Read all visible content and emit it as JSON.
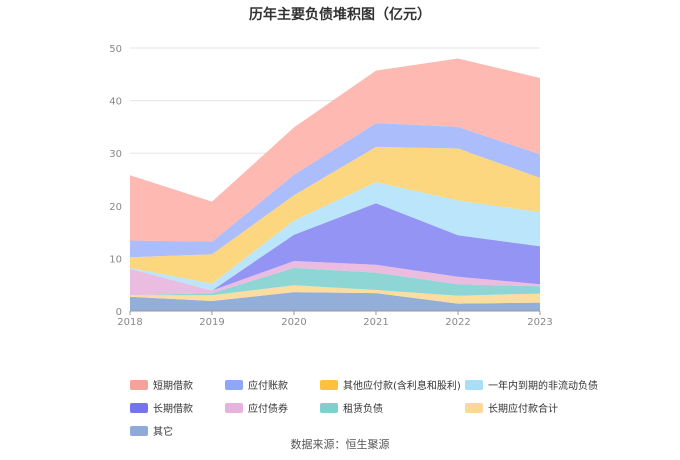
{
  "chart_data": {
    "type": "area",
    "stacked": true,
    "title": "历年主要负债堆积图（亿元）",
    "x": [
      "2018",
      "2019",
      "2020",
      "2021",
      "2022",
      "2023"
    ],
    "ylim": [
      0,
      50
    ],
    "yticks": [
      0,
      10,
      20,
      30,
      40,
      50
    ],
    "grid": true,
    "legend_position": "bottom",
    "series": [
      {
        "name": "其它",
        "color": "#8eaad8",
        "values": [
          2.7,
          1.9,
          3.6,
          3.4,
          1.4,
          1.6
        ]
      },
      {
        "name": "长期应付款合计",
        "color": "#fbdc9a",
        "values": [
          0.3,
          1.1,
          1.3,
          0.6,
          1.5,
          1.7
        ]
      },
      {
        "name": "租赁负债",
        "color": "#88d4d4",
        "values": [
          0.0,
          0.4,
          3.3,
          3.3,
          2.2,
          1.4
        ]
      },
      {
        "name": "应付债券",
        "color": "#e9b8de",
        "values": [
          5.0,
          0.5,
          1.3,
          1.5,
          1.4,
          0.4
        ]
      },
      {
        "name": "长期借款",
        "color": "#8e8ef3",
        "values": [
          0.0,
          0.0,
          5.0,
          11.7,
          7.9,
          7.2
        ]
      },
      {
        "name": "一年内到期的非流动负债",
        "color": "#b6e4fb",
        "values": [
          0.2,
          1.3,
          2.7,
          4.0,
          6.6,
          6.5
        ]
      },
      {
        "name": "其他应付款(含利息和股利)",
        "color": "#fdd578",
        "values": [
          2.0,
          5.6,
          4.8,
          6.7,
          9.9,
          6.5
        ]
      },
      {
        "name": "应付账款",
        "color": "#a6b9fb",
        "values": [
          3.2,
          2.4,
          3.9,
          4.5,
          4.1,
          4.5
        ]
      },
      {
        "name": "短期借款",
        "color": "#fdb5ae",
        "values": [
          12.4,
          7.6,
          9.0,
          10.0,
          13.0,
          14.5
        ]
      }
    ]
  },
  "legend": [
    {
      "label": "短期借款",
      "color": "#f4a39b"
    },
    {
      "label": "应付账款",
      "color": "#8fa7f7"
    },
    {
      "label": "其他应付款(含利息和股利)",
      "color": "#fbc33b"
    },
    {
      "label": "一年内到期的非流动负债",
      "color": "#a9def9"
    },
    {
      "label": "长期借款",
      "color": "#7474ec"
    },
    {
      "label": "应付债券",
      "color": "#e6b3de"
    },
    {
      "label": "租赁负债",
      "color": "#80d0d0"
    },
    {
      "label": "长期应付款合计",
      "color": "#fcd79a"
    },
    {
      "label": "其它",
      "color": "#8fa9d8"
    }
  ],
  "source": "数据来源：恒生聚源"
}
